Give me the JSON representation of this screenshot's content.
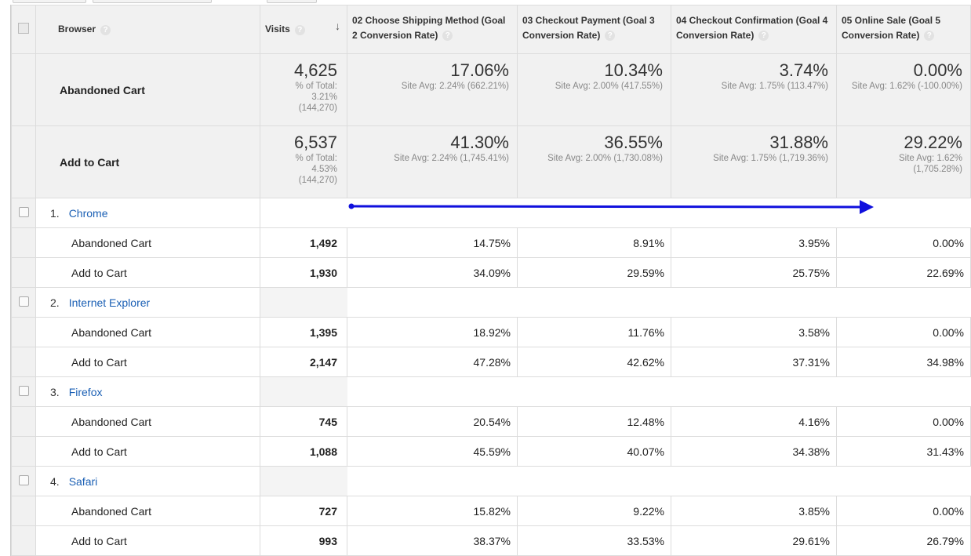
{
  "headers": {
    "browser": "Browser",
    "visits": "Visits",
    "goals": [
      "02 Choose Shipping Method (Goal 2 Conversion Rate)",
      "03 Checkout Payment (Goal 3 Conversion Rate)",
      "04 Checkout Confirmation (Goal 4 Conversion Rate)",
      "05 Online Sale (Goal 5 Conversion Rate)"
    ]
  },
  "summary": [
    {
      "segment": "Abandoned Cart",
      "visits": "4,625",
      "visits_pct_label": "% of Total:",
      "visits_pct": "3.21%",
      "visits_total": "(144,270)",
      "goals": [
        {
          "value": "17.06%",
          "avg": "Site Avg: 2.24% (662.21%)"
        },
        {
          "value": "10.34%",
          "avg": "Site Avg: 2.00% (417.55%)"
        },
        {
          "value": "3.74%",
          "avg": "Site Avg: 1.75% (113.47%)"
        },
        {
          "value": "0.00%",
          "avg": "Site Avg: 1.62% (-100.00%)"
        }
      ]
    },
    {
      "segment": "Add to Cart",
      "visits": "6,537",
      "visits_pct_label": "% of Total:",
      "visits_pct": "4.53%",
      "visits_total": "(144,270)",
      "goals": [
        {
          "value": "41.30%",
          "avg": "Site Avg: 2.24% (1,745.41%)"
        },
        {
          "value": "36.55%",
          "avg": "Site Avg: 2.00% (1,730.08%)"
        },
        {
          "value": "31.88%",
          "avg": "Site Avg: 1.75% (1,719.36%)"
        },
        {
          "value": "29.22%",
          "avg": "Site Avg: 1.62%",
          "avg2": "(1,705.28%)"
        }
      ]
    }
  ],
  "browsers": [
    {
      "index": "1.",
      "name": "Chrome",
      "rows": [
        {
          "segment": "Abandoned Cart",
          "visits": "1,492",
          "goals": [
            "14.75%",
            "8.91%",
            "3.95%",
            "0.00%"
          ]
        },
        {
          "segment": "Add to Cart",
          "visits": "1,930",
          "goals": [
            "34.09%",
            "29.59%",
            "25.75%",
            "22.69%"
          ]
        }
      ]
    },
    {
      "index": "2.",
      "name": "Internet Explorer",
      "rows": [
        {
          "segment": "Abandoned Cart",
          "visits": "1,395",
          "goals": [
            "18.92%",
            "11.76%",
            "3.58%",
            "0.00%"
          ]
        },
        {
          "segment": "Add to Cart",
          "visits": "2,147",
          "goals": [
            "47.28%",
            "42.62%",
            "37.31%",
            "34.98%"
          ]
        }
      ]
    },
    {
      "index": "3.",
      "name": "Firefox",
      "rows": [
        {
          "segment": "Abandoned Cart",
          "visits": "745",
          "goals": [
            "20.54%",
            "12.48%",
            "4.16%",
            "0.00%"
          ]
        },
        {
          "segment": "Add to Cart",
          "visits": "1,088",
          "goals": [
            "45.59%",
            "40.07%",
            "34.38%",
            "31.43%"
          ]
        }
      ]
    },
    {
      "index": "4.",
      "name": "Safari",
      "rows": [
        {
          "segment": "Abandoned Cart",
          "visits": "727",
          "goals": [
            "15.82%",
            "9.22%",
            "3.85%",
            "0.00%"
          ]
        },
        {
          "segment": "Add to Cart",
          "visits": "993",
          "goals": [
            "38.37%",
            "33.53%",
            "29.61%",
            "26.79%"
          ]
        }
      ]
    }
  ],
  "icons": {
    "help": "help-icon",
    "sort": "sort-down-arrow-icon",
    "annotation": "blue-arrow-annotation"
  },
  "colors": {
    "link": "#1a5fb4",
    "annotation": "#1010dd"
  }
}
